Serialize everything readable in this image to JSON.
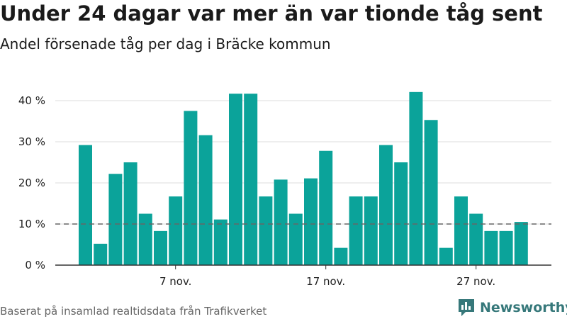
{
  "title": "Under 24 dagar var mer än var tionde tåg sent",
  "subtitle": "Andel försenade tåg per dag i Bräcke kommun",
  "footer": "Baserat på insamlad realtidsdata från Trafikverket",
  "brand": {
    "name": "Newsworthy",
    "color": "#36787a",
    "icon": "bar-chart-logo-icon"
  },
  "colors": {
    "bar": "#0ba39a",
    "grid": "#dddddd",
    "reference": "#666666",
    "axis": "#333333"
  },
  "chart_data": {
    "type": "bar",
    "title": "Under 24 dagar var mer än var tionde tåg sent",
    "subtitle": "Andel försenade tåg per dag i Bräcke kommun",
    "xlabel": "",
    "ylabel": "",
    "categories": [
      "1",
      "2",
      "3",
      "4",
      "5",
      "6",
      "7",
      "8",
      "9",
      "10",
      "11",
      "12",
      "13",
      "14",
      "15",
      "16",
      "17",
      "18",
      "19",
      "20",
      "21",
      "22",
      "23",
      "24",
      "25",
      "26",
      "27",
      "28",
      "29",
      "30"
    ],
    "values": [
      29.2,
      5.2,
      22.2,
      25,
      12.5,
      8.3,
      16.7,
      37.5,
      31.6,
      11.1,
      41.7,
      41.7,
      16.7,
      20.8,
      12.5,
      21.1,
      27.8,
      4.2,
      16.7,
      16.7,
      29.2,
      25,
      42.1,
      35.3,
      4.2,
      16.7,
      12.5,
      8.3,
      8.3,
      10.5
    ],
    "ylim": [
      0,
      45
    ],
    "yticks": [
      0,
      10,
      20,
      30,
      40
    ],
    "ytick_labels": [
      "0 %",
      "10 %",
      "20 %",
      "30 %",
      "40 %"
    ],
    "xticks": [
      {
        "index": 6,
        "label": "7 nov."
      },
      {
        "index": 16,
        "label": "17 nov."
      },
      {
        "index": 26,
        "label": "27 nov."
      }
    ],
    "reference_line": 10,
    "grid": true
  }
}
